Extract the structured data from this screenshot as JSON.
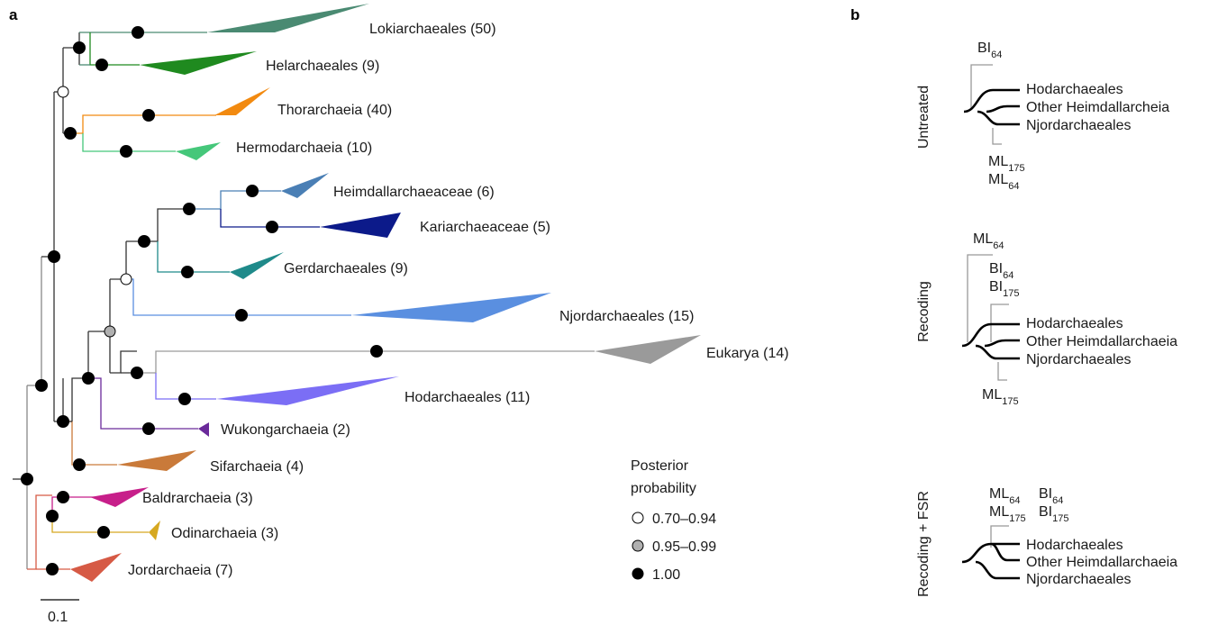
{
  "panel_a": {
    "letter": "a",
    "clades": [
      {
        "label": "Lokiarchaeales (50)",
        "color": "#4a8a72"
      },
      {
        "label": "Helarchaeales (9)",
        "color": "#1f8a1f"
      },
      {
        "label": "Thorarchaeia (40)",
        "color": "#f28a10"
      },
      {
        "label": "Hermodarchaeia (10)",
        "color": "#45c77a"
      },
      {
        "label": "Heimdallarchaeaceae (6)",
        "color": "#4a7fb5"
      },
      {
        "label": "Kariarchaeaceae (5)",
        "color": "#0c1a8a"
      },
      {
        "label": "Gerdarchaeales (9)",
        "color": "#1f8a8a"
      },
      {
        "label": "Njordarchaeales (15)",
        "color": "#5a8fe0"
      },
      {
        "label": "Eukarya (14)",
        "color": "#9a9a9a"
      },
      {
        "label": "Hodarchaeales (11)",
        "color": "#7b6ef5"
      },
      {
        "label": "Wukongarchaeia (2)",
        "color": "#6a2a9a"
      },
      {
        "label": "Sifarchaeia (4)",
        "color": "#c97a3a"
      },
      {
        "label": "Baldrarchaeia (3)",
        "color": "#c71f8a"
      },
      {
        "label": "Odinarchaeia (3)",
        "color": "#d6a820"
      },
      {
        "label": "Jordarchaeia (7)",
        "color": "#d65a45"
      }
    ],
    "scale_label": "0.1",
    "legend": {
      "title_line1": "Posterior",
      "title_line2": "probability",
      "items": [
        {
          "label": "0.70–0.94",
          "color": "#ffffff"
        },
        {
          "label": "0.95–0.99",
          "color": "#b0b0b0"
        },
        {
          "label": "1.00",
          "color": "#000000"
        }
      ]
    }
  },
  "panel_b": {
    "letter": "b",
    "taxa": [
      "Hodarchaeales",
      "Other Heimdallarcheia",
      "Njordarchaeales"
    ],
    "taxa_alt": [
      "Hodarchaeales",
      "Other Heimdallarchaeia",
      "Njordarchaeales"
    ],
    "conditions": [
      "Untreated",
      "Recoding",
      "Recoding + FSR"
    ],
    "methods": {
      "ML": "ML",
      "BI": "BI",
      "sub64": "64",
      "sub175": "175"
    },
    "colors": {
      "ml": "#2f5b8a",
      "bi": "#6a9fd6"
    }
  }
}
